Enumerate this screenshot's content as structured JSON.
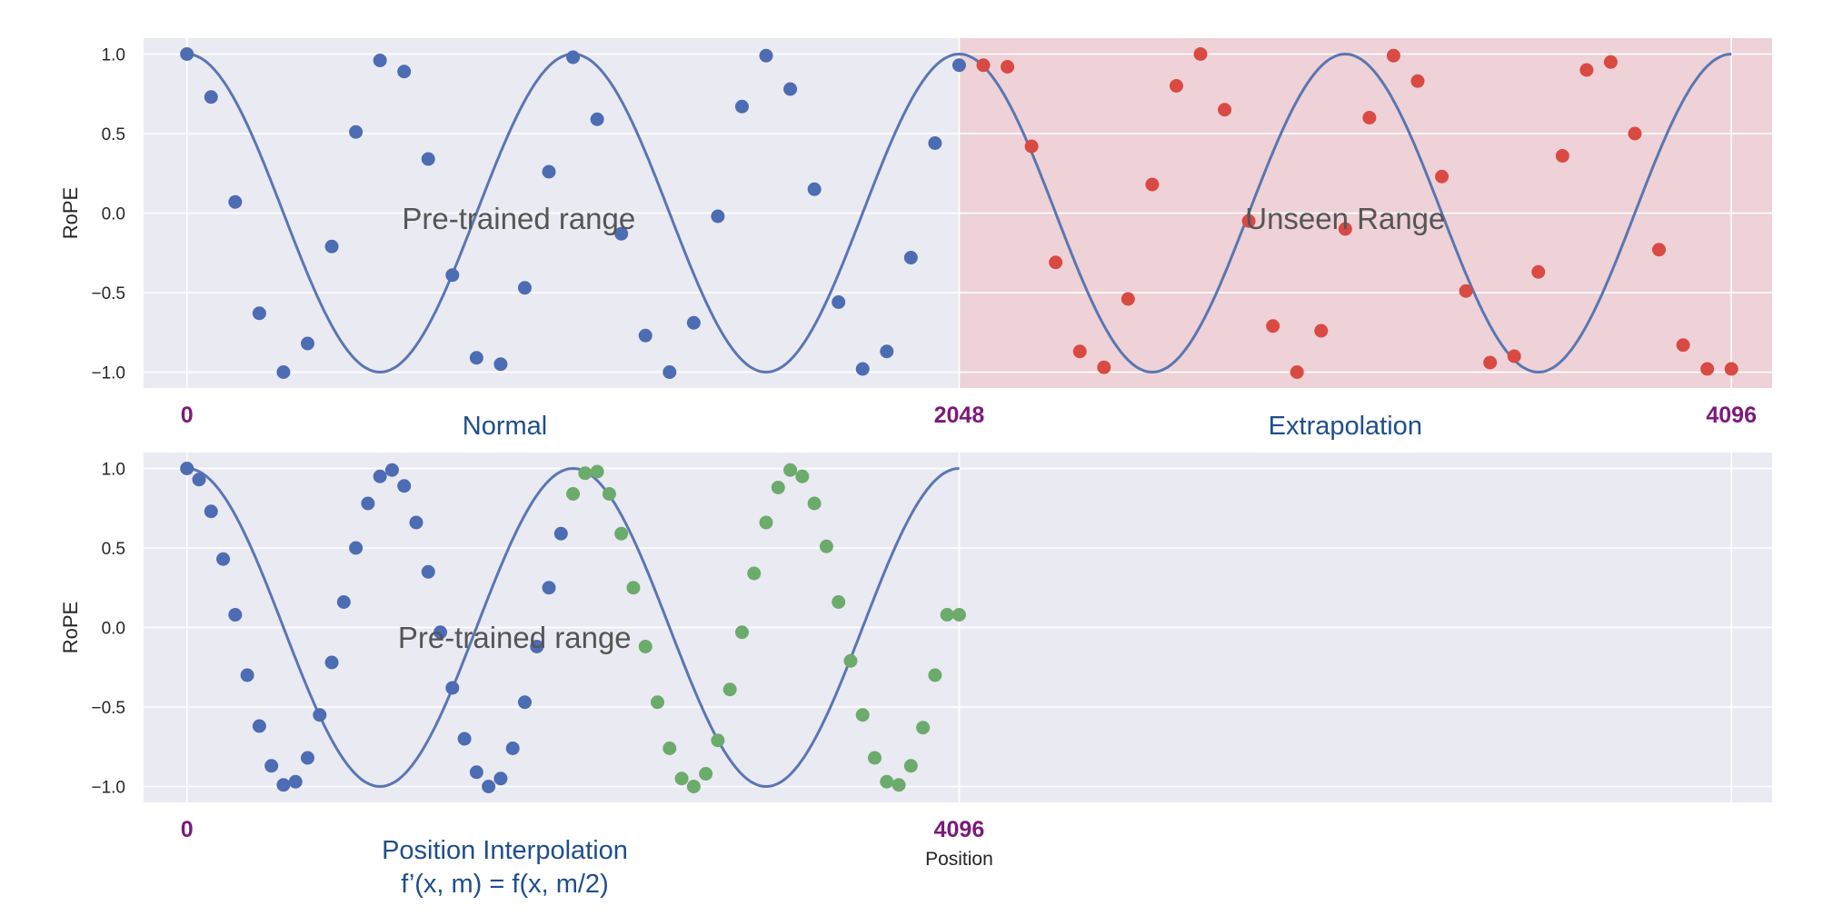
{
  "colors": {
    "panel_bg": "#eaeaf2",
    "grid": "#ffffff",
    "curve": "#5a76b2",
    "dot_pretrained": "#4c6cb3",
    "dot_unseen": "#d94a43",
    "dot_interp": "#6bab6b",
    "unseen_shade": "#f4b6b6",
    "position_label": "#7b1a7b",
    "caption": "#1f4e8c"
  },
  "chart_data": [
    {
      "type": "line",
      "panel": "top",
      "ylabel": "RoPE",
      "ylim": [
        -1.1,
        1.1
      ],
      "yticks": [
        -1.0,
        -0.5,
        0.0,
        0.5,
        1.0
      ],
      "ytick_labels": [
        "−1.0",
        "−0.5",
        "0.0",
        "0.5",
        "1.0"
      ],
      "xlim": [
        -115,
        4204
      ],
      "position_labels": [
        {
          "x": 0,
          "text": "0"
        },
        {
          "x": 2048,
          "text": "2048"
        },
        {
          "x": 4096,
          "text": "4096"
        }
      ],
      "captions": [
        {
          "x": 843,
          "lines": [
            "Normal"
          ]
        },
        {
          "x": 3072,
          "lines": [
            "Extrapolation"
          ]
        }
      ],
      "annotations": [
        {
          "x": 880,
          "y": -0.03,
          "text": "Pre-trained range"
        },
        {
          "x": 3072,
          "y": -0.03,
          "text": "Unseen Range"
        }
      ],
      "shaded_region": {
        "x0": 2048,
        "x1": 4204,
        "label": "Unseen Range"
      },
      "curve": {
        "function": "cos",
        "period": 1024,
        "x_range": [
          0,
          4096
        ]
      },
      "series": [
        {
          "role": "pre-trained",
          "color_key": "dot_pretrained",
          "x": [
            0,
            64,
            128,
            192,
            256,
            320,
            384,
            448,
            512,
            576,
            640,
            704,
            768,
            832,
            896,
            960,
            1024,
            1088,
            1152,
            1216,
            1280,
            1344,
            1408,
            1472,
            1536,
            1600,
            1664,
            1728,
            1792,
            1856,
            1920,
            1984,
            2048
          ],
          "y": [
            1.0,
            0.73,
            0.07,
            -0.63,
            -1.0,
            -0.82,
            -0.21,
            0.51,
            0.96,
            0.89,
            0.34,
            -0.39,
            -0.91,
            -0.95,
            -0.47,
            0.26,
            0.98,
            0.59,
            -0.13,
            -0.77,
            -1.0,
            -0.69,
            -0.02,
            0.67,
            0.99,
            0.78,
            0.15,
            -0.56,
            -0.98,
            -0.87,
            -0.28,
            0.44,
            0.93
          ]
        },
        {
          "role": "unseen",
          "color_key": "dot_unseen",
          "x": [
            2112,
            2176,
            2240,
            2304,
            2368,
            2432,
            2496,
            2560,
            2624,
            2688,
            2752,
            2816,
            2880,
            2944,
            3008,
            3072,
            3136,
            3200,
            3264,
            3328,
            3392,
            3456,
            3520,
            3584,
            3648,
            3712,
            3776,
            3840,
            3904,
            3968,
            4032,
            4096
          ],
          "y": [
            0.93,
            0.92,
            0.42,
            -0.31,
            -0.87,
            -0.97,
            -0.54,
            0.18,
            0.8,
            1.0,
            0.65,
            -0.05,
            -0.71,
            -1.0,
            -0.74,
            -0.1,
            0.6,
            0.99,
            0.83,
            0.23,
            -0.49,
            -0.94,
            -0.9,
            -0.37,
            0.36,
            0.9,
            0.95,
            0.5,
            -0.23,
            -0.83,
            -0.98,
            -0.98
          ]
        }
      ]
    },
    {
      "type": "line",
      "panel": "bottom",
      "ylabel": "RoPE",
      "xlabel": "Position",
      "ylim": [
        -1.1,
        1.1
      ],
      "yticks": [
        -1.0,
        -0.5,
        0.0,
        0.5,
        1.0
      ],
      "ytick_labels": [
        "−1.0",
        "−0.5",
        "0.0",
        "0.5",
        "1.0"
      ],
      "xlim": [
        -115,
        4204
      ],
      "position_labels": [
        {
          "x": 0,
          "text": "0"
        },
        {
          "x": 2048,
          "text": "4096"
        }
      ],
      "captions": [
        {
          "x": 843,
          "lines": [
            "Position Interpolation",
            "f’(x, m) = f(x, m/2)"
          ]
        }
      ],
      "annotations": [
        {
          "x": 869,
          "y": -0.06,
          "text": "Pre-trained range"
        }
      ],
      "curve": {
        "function": "cos",
        "period": 1024,
        "x_range": [
          0,
          2048
        ]
      },
      "series": [
        {
          "role": "pre-trained",
          "color_key": "dot_pretrained",
          "x": [
            0,
            32,
            64,
            96,
            128,
            160,
            192,
            224,
            256,
            288,
            320,
            352,
            384,
            416,
            448,
            480,
            512,
            544,
            576,
            608,
            640,
            672,
            704,
            736,
            768,
            800,
            832,
            864,
            896,
            928,
            960,
            992
          ],
          "y": [
            1.0,
            0.93,
            0.73,
            0.43,
            0.08,
            -0.3,
            -0.62,
            -0.87,
            -0.99,
            -0.97,
            -0.82,
            -0.55,
            -0.22,
            0.16,
            0.5,
            0.78,
            0.95,
            0.99,
            0.89,
            0.66,
            0.35,
            -0.03,
            -0.38,
            -0.7,
            -0.91,
            -1.0,
            -0.95,
            -0.76,
            -0.47,
            -0.12,
            0.25,
            0.59
          ]
        },
        {
          "role": "interpolated",
          "color_key": "dot_interp",
          "x": [
            1024,
            1056,
            1088,
            1120,
            1152,
            1184,
            1216,
            1248,
            1280,
            1312,
            1344,
            1376,
            1408,
            1440,
            1472,
            1504,
            1536,
            1568,
            1600,
            1632,
            1664,
            1696,
            1728,
            1760,
            1792,
            1824,
            1856,
            1888,
            1920,
            1952,
            1984,
            2016,
            2048
          ],
          "y": [
            0.84,
            0.97,
            0.98,
            0.84,
            0.59,
            0.25,
            -0.12,
            -0.47,
            -0.76,
            -0.95,
            -1.0,
            -0.92,
            -0.71,
            -0.39,
            -0.03,
            0.34,
            0.66,
            0.88,
            0.99,
            0.95,
            0.78,
            0.51,
            0.16,
            -0.21,
            -0.55,
            -0.82,
            -0.97,
            -0.99,
            -0.87,
            -0.63,
            -0.3,
            0.08,
            0.08
          ]
        }
      ]
    }
  ]
}
